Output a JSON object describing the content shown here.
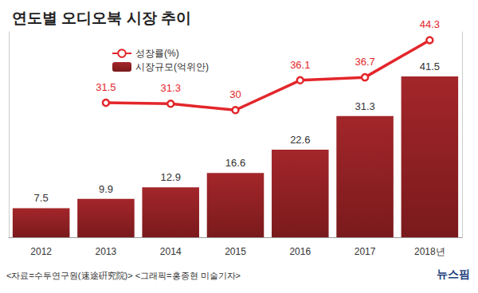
{
  "chart_data": {
    "type": "bar",
    "title": "연도별 오디오북 시장 추이",
    "categories": [
      "2012",
      "2013",
      "2014",
      "2015",
      "2016",
      "2017",
      "2018년"
    ],
    "series": [
      {
        "name": "성장률(%)",
        "type": "line",
        "color": "#e3262b",
        "marker": "circle",
        "axis": "y2",
        "values": [
          null,
          31.5,
          31.3,
          30,
          36.1,
          36.7,
          44.3
        ]
      },
      {
        "name": "시장규모(억위안)",
        "type": "bar",
        "color": "#a3262a",
        "values": [
          7.5,
          9.9,
          12.9,
          16.6,
          22.6,
          31.3,
          41.5
        ]
      }
    ],
    "ylim": [
      0,
      53
    ],
    "yticks": [],
    "y2lim": [
      4,
      46
    ],
    "y2ticks": [],
    "legend": "top-left",
    "data_labels": true,
    "tick_labels": "x",
    "grid": false,
    "annotations": [
      "<자료=수투연구원(速途硏究院)> <그래픽=홍종현 미술기자>",
      "뉴스핌"
    ]
  }
}
